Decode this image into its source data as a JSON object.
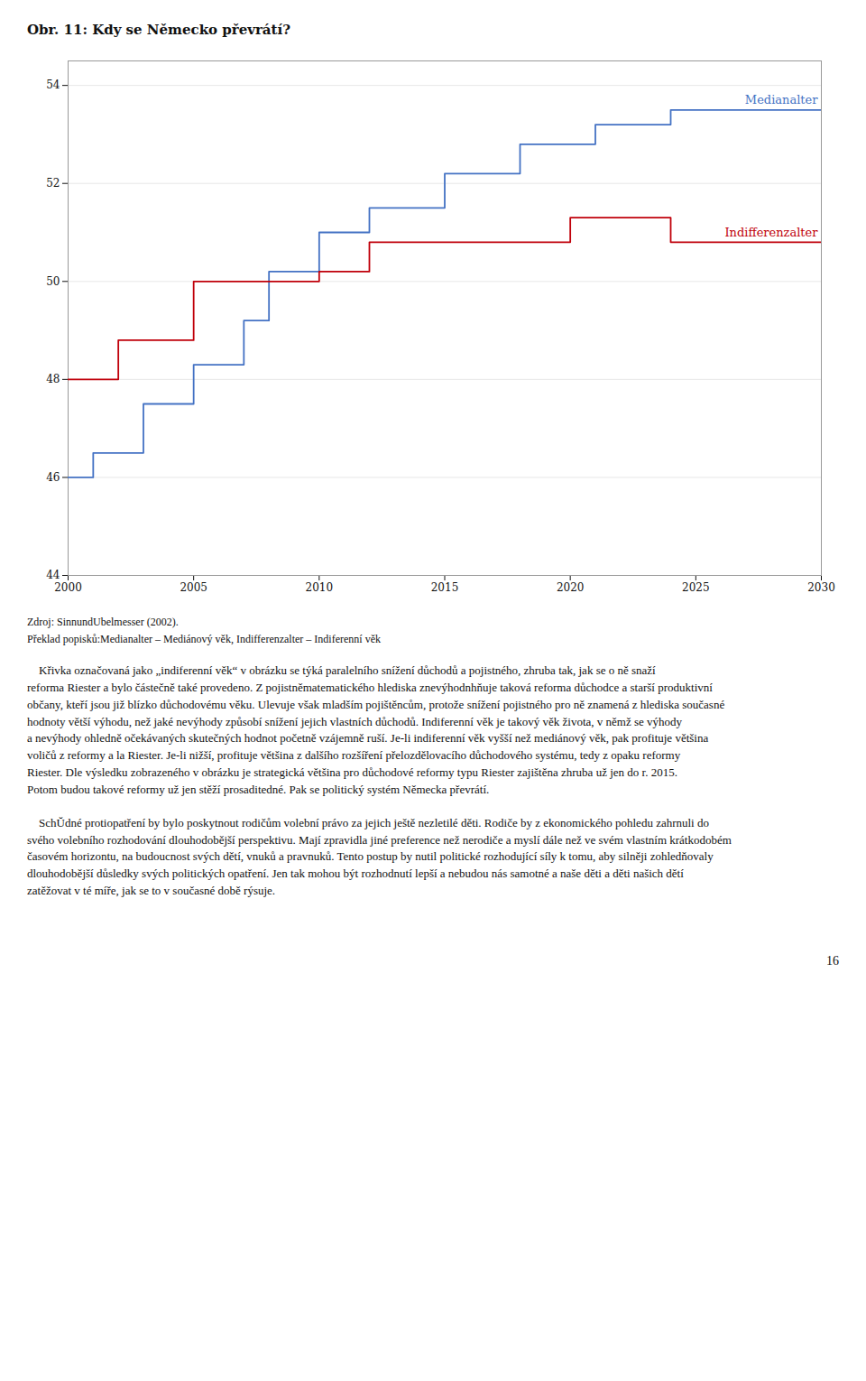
{
  "chart_data": {
    "type": "line",
    "title": "Obr. 11: Kdy se Německo převrátí?",
    "xlim": [
      2000,
      2030
    ],
    "ylim": [
      44,
      54.5
    ],
    "xticks": [
      2000,
      2005,
      2010,
      2015,
      2020,
      2025,
      2030
    ],
    "yticks": [
      44,
      46,
      48,
      50,
      52,
      54
    ],
    "grid": true,
    "series": [
      {
        "name": "Medianalter",
        "color": "#4472c4",
        "x": [
          2000,
          2001,
          2001,
          2003,
          2003,
          2005,
          2005,
          2007,
          2007,
          2008,
          2008,
          2010,
          2010,
          2012,
          2012,
          2015,
          2015,
          2018,
          2018,
          2021,
          2021,
          2024,
          2024,
          2030
        ],
        "values": [
          46.0,
          46.0,
          46.5,
          46.5,
          47.5,
          47.5,
          48.3,
          48.3,
          49.2,
          49.2,
          50.2,
          50.2,
          51.0,
          51.0,
          51.5,
          51.5,
          52.2,
          52.2,
          52.8,
          52.8,
          53.2,
          53.2,
          53.5,
          53.5
        ]
      },
      {
        "name": "Indifferenzalter",
        "color": "#c0000a",
        "x": [
          2000,
          2002,
          2002,
          2005,
          2005,
          2010,
          2010,
          2012,
          2012,
          2020,
          2020,
          2024,
          2024,
          2030
        ],
        "values": [
          48.0,
          48.0,
          48.8,
          48.8,
          50.0,
          50.0,
          50.2,
          50.2,
          50.8,
          50.8,
          51.3,
          51.3,
          50.8,
          50.8
        ]
      }
    ]
  },
  "source": "Zdroj: SinnundUbelmesser (2002).",
  "translation": "Překlad popisků:Medianalter – Mediánový věk, Indifferenzalter – Indiferenní věk",
  "body": [
    [
      "    Křivka označovaná jako „indiferenní věk“ v obrázku se týká paralelního snížení důchodů a pojistného, zhruba tak, jak se o ně snaží",
      "reforma Riester a bylo částečně také provedeno. Z pojistněmatematického hlediska znevýhodnhňuje taková reforma důchodce a starší produktivní",
      "občany, kteří jsou již blízko důchodovému věku. Ulevuje však mladším pojištěncům, protože snížení pojistného pro ně znamená z hlediska současné",
      "hodnoty větší výhodu, než jaké nevýhody způsobí snížení jejich vlastních důchodů. Indiferenní věk je takový věk života, v němž se výhody",
      "a nevýhody ohledně očekávaných skutečných hodnot početně vzájemně ruší. Je-li indiferenní věk vyšší než mediánový věk, pak profituje většina",
      "voličů z reformy a la Riester. Je-li nižší, profituje většina z dalšího rozšíření přelozdělovacího důchodového systému, tedy z opaku reformy",
      "Riester. Dle výsledku zobrazeného v obrázku je strategická většina pro důchodové reformy typu Riester zajištěna zhruba už jen do r. 2015.",
      "Potom budou takové reformy už jen stěží prosaditedné. Pak se politický systém Německa převrátí."
    ],
    [
      "    SchŬdné protiopatření by bylo poskytnout rodičům volební právo za jejich ještě nezletilé děti. Rodiče by z ekonomického pohledu zahrnuli do",
      "svého volebního rozhodování dlouhodobější perspektivu. Mají zpravidla jiné preference než nerodiče a myslí dále než ve svém vlastním krátkodobém",
      "časovém horizontu, na budoucnost svých dětí, vnuků a pravnuků. Tento postup by nutil politické rozhodující síly k tomu, aby silněji zohledňovaly",
      "dlouhodobější důsledky svých politických opatření. Jen tak mohou být rozhodnutí lepší a nebudou nás samotné a naše děti a děti našich dětí",
      "zatěžovat v té míře, jak se to v současné době rýsuje."
    ]
  ],
  "page_number": "16"
}
